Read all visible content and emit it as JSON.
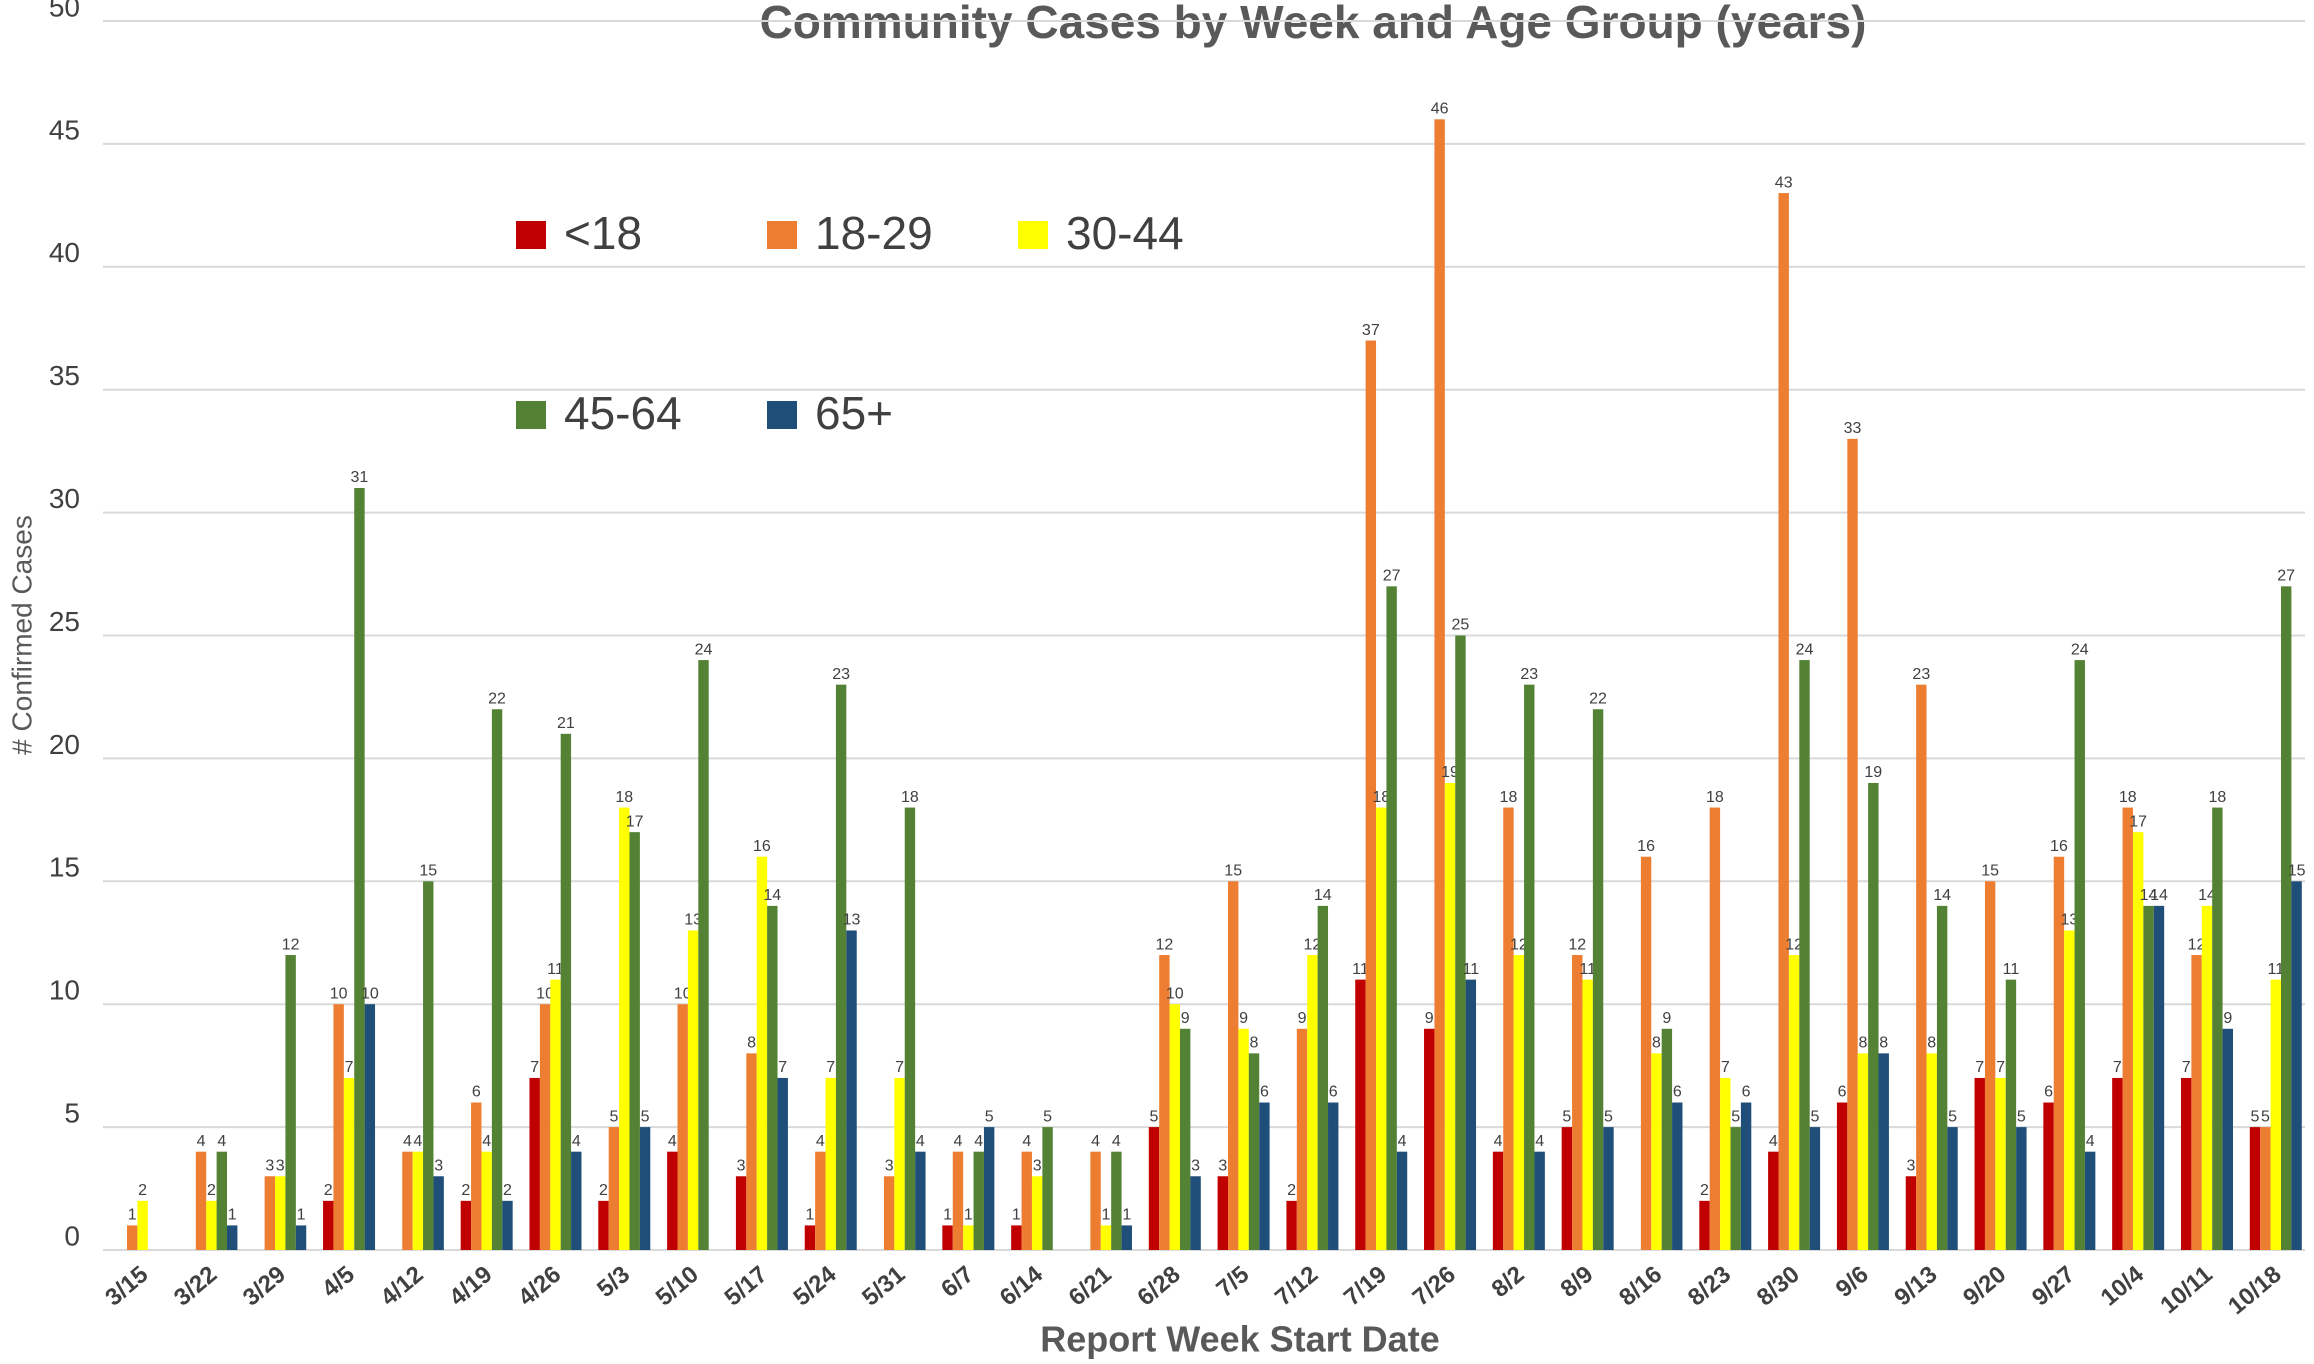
{
  "chart_data": {
    "type": "bar",
    "title": "Community Cases by Week and Age Group (years)",
    "xlabel": "Report Week Start Date",
    "ylabel": "# Confirmed Cases",
    "categories": [
      "3/15",
      "3/22",
      "3/29",
      "4/5",
      "4/12",
      "4/19",
      "4/26",
      "5/3",
      "5/10",
      "5/17",
      "5/24",
      "5/31",
      "6/7",
      "6/14",
      "6/21",
      "6/28",
      "7/5",
      "7/12",
      "7/19",
      "7/26",
      "8/2",
      "8/9",
      "8/16",
      "8/23",
      "8/30",
      "9/6",
      "9/13",
      "9/20",
      "9/27",
      "10/4",
      "10/11",
      "10/18"
    ],
    "series": [
      {
        "name": "<18",
        "color": "#c00000",
        "values": [
          null,
          null,
          null,
          2,
          null,
          2,
          7,
          2,
          4,
          3,
          1,
          null,
          1,
          1,
          null,
          5,
          3,
          2,
          11,
          9,
          4,
          5,
          null,
          2,
          4,
          6,
          3,
          7,
          6,
          7,
          7,
          5
        ]
      },
      {
        "name": "18-29",
        "color": "#ed7d31",
        "values": [
          1,
          4,
          3,
          10,
          4,
          6,
          10,
          5,
          10,
          8,
          4,
          3,
          4,
          4,
          4,
          12,
          15,
          9,
          37,
          46,
          18,
          12,
          16,
          18,
          43,
          33,
          23,
          15,
          16,
          18,
          12,
          5
        ]
      },
      {
        "name": "30-44",
        "color": "#ffff00",
        "values": [
          2,
          2,
          3,
          7,
          4,
          4,
          11,
          18,
          13,
          16,
          7,
          7,
          1,
          3,
          1,
          10,
          9,
          12,
          18,
          19,
          12,
          11,
          8,
          7,
          12,
          8,
          8,
          7,
          13,
          17,
          14,
          11
        ]
      },
      {
        "name": "45-64",
        "color": "#548235",
        "values": [
          null,
          4,
          12,
          31,
          15,
          22,
          21,
          17,
          24,
          14,
          23,
          18,
          4,
          5,
          4,
          9,
          8,
          14,
          27,
          25,
          23,
          22,
          9,
          5,
          24,
          19,
          14,
          11,
          24,
          14,
          18,
          27
        ]
      },
      {
        "name": "65+",
        "color": "#1f4e79",
        "values": [
          null,
          1,
          1,
          10,
          3,
          2,
          4,
          5,
          null,
          7,
          13,
          4,
          5,
          null,
          1,
          3,
          6,
          6,
          4,
          11,
          4,
          5,
          6,
          6,
          5,
          8,
          5,
          5,
          4,
          14,
          9,
          15
        ]
      }
    ],
    "ylim": [
      0,
      50
    ],
    "yticks": [
      0,
      5,
      10,
      15,
      20,
      25,
      30,
      35,
      40,
      45,
      50
    ],
    "grid": true,
    "data_labels": true
  }
}
